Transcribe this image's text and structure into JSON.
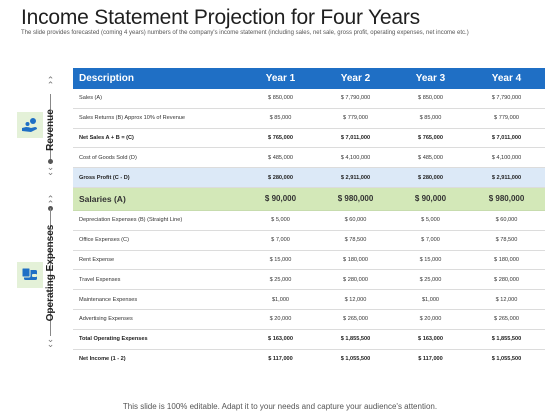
{
  "header": {
    "title": "Income Statement Projection for Four Years",
    "subtitle": "The slide provides forecasted (coming 4 years) numbers of the company's income statement (including sales, net sale, gross profit, operating expenses, net income etc.)"
  },
  "sections": {
    "revenue_label": "Revenue",
    "opex_label": "Operating Expenses",
    "revenue_icon": "hand-coins-icon",
    "opex_icon": "wallet-money-icon"
  },
  "table": {
    "columns": [
      "Description",
      "Year 1",
      "Year 2",
      "Year 3",
      "Year 4"
    ],
    "rows": [
      {
        "cells": [
          "Sales (A)",
          "$ 850,000",
          "$ 7,790,000",
          "$ 850,000",
          "$ 7,790,000"
        ]
      },
      {
        "cells": [
          "Sales Returns (B) Approx 10% of Revenue",
          "$ 85,000",
          "$ 779,000",
          "$ 85,000",
          "$ 779,000"
        ]
      },
      {
        "cells": [
          "Net Sales A + B = (C)",
          "$ 765,000",
          "$ 7,011,000",
          "$ 765,000",
          "$ 7,011,000"
        ]
      },
      {
        "cells": [
          "Cost of Goods Sold (D)",
          "$ 485,000",
          "$ 4,100,000",
          "$ 485,000",
          "$ 4,100,000"
        ]
      },
      {
        "cells": [
          "Gross Profit (C - D)",
          "$ 280,000",
          "$ 2,911,000",
          "$ 280,000",
          "$ 2,911,000"
        ]
      },
      {
        "cells": [
          "Salaries (A)",
          "$ 90,000",
          "$ 980,000",
          "$ 90,000",
          "$ 980,000"
        ]
      },
      {
        "cells": [
          "Depreciation Expenses (B) (Straight Line)",
          "$ 5,000",
          "$ 60,000",
          "$ 5,000",
          "$ 60,000"
        ]
      },
      {
        "cells": [
          "Office Expenses (C)",
          "$ 7,000",
          "$ 78,500",
          "$ 7,000",
          "$ 78,500"
        ]
      },
      {
        "cells": [
          "Rent Expense",
          "$ 15,000",
          "$ 180,000",
          "$ 15,000",
          "$ 180,000"
        ]
      },
      {
        "cells": [
          "Travel Expenses",
          "$ 25,000",
          "$ 280,000",
          "$ 25,000",
          "$ 280,000"
        ]
      },
      {
        "cells": [
          "Maintenance Expenses",
          "$1,000",
          "$ 12,000",
          "$1,000",
          "$ 12,000"
        ]
      },
      {
        "cells": [
          "Advertising Expenses",
          "$ 20,000",
          "$ 265,000",
          "$ 20,000",
          "$ 265,000"
        ]
      },
      {
        "cells": [
          "Total Operating Expenses",
          "$ 163,000",
          "$ 1,855,500",
          "$ 163,000",
          "$ 1,855,500"
        ]
      },
      {
        "cells": [
          "Net Income (1 - 2)",
          "$ 117,000",
          "$ 1,055,500",
          "$ 117,000",
          "$ 1,055,500"
        ]
      }
    ]
  },
  "footer": {
    "text": "This slide is 100% editable. Adapt it to your needs and capture your audience's attention."
  },
  "colors": {
    "header_blue": "#1f6fc5",
    "highlight_blue": "#dce9f7",
    "highlight_green": "#d3e8b8",
    "icon_bg": "#e4f1d8"
  }
}
